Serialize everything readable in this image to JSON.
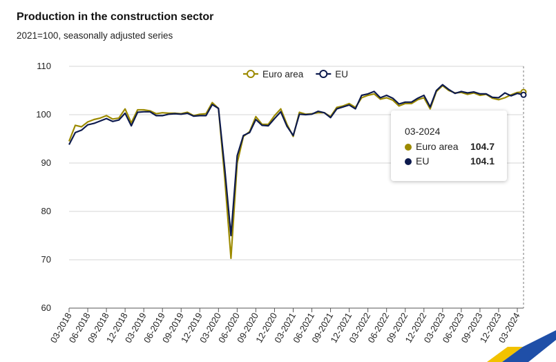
{
  "title": "Production in the construction sector",
  "subtitle": "2021=100, seasonally adjusted series",
  "chart_data": {
    "type": "line",
    "title": "Production in the construction sector",
    "subtitle": "2021=100, seasonally adjusted series",
    "xlabel": "",
    "ylabel": "",
    "ylim": [
      60,
      110
    ],
    "yticks": [
      60,
      70,
      80,
      90,
      100,
      110
    ],
    "xtick_labels": [
      "03-2018",
      "06-2018",
      "09-2018",
      "12-2018",
      "03-2019",
      "06-2019",
      "09-2019",
      "12-2019",
      "03-2020",
      "06-2020",
      "09-2020",
      "12-2020",
      "03-2021",
      "06-2021",
      "09-2021",
      "12-2021",
      "03-2022",
      "06-2022",
      "09-2022",
      "12-2022",
      "03-2023",
      "06-2023",
      "09-2023",
      "12-2023",
      "03-2024"
    ],
    "grid": "horizontal",
    "legend_position": "top",
    "x_start": "03-2018",
    "x_end": "03-2024",
    "series": [
      {
        "name": "Euro area",
        "color": "#9c8a00",
        "values": [
          94.5,
          97.8,
          97.5,
          98.5,
          99.0,
          99.3,
          99.8,
          99.1,
          99.3,
          101.2,
          98.3,
          101.0,
          101.0,
          100.8,
          100.2,
          100.4,
          100.3,
          100.3,
          100.2,
          100.5,
          99.8,
          100.1,
          100.2,
          102.5,
          101.3,
          87.0,
          70.3,
          90.0,
          95.5,
          96.5,
          99.6,
          98.0,
          98.0,
          99.8,
          101.2,
          98.0,
          95.5,
          100.5,
          100.1,
          100.2,
          100.4,
          100.4,
          99.6,
          101.5,
          101.8,
          102.3,
          101.5,
          103.5,
          104.0,
          104.3,
          103.2,
          103.5,
          103.0,
          101.8,
          102.3,
          102.3,
          103.1,
          103.5,
          101.2,
          104.8,
          106.0,
          105.0,
          104.5,
          104.6,
          104.2,
          104.5,
          104.0,
          104.2,
          103.4,
          103.1,
          103.5,
          104.1,
          104.6,
          104.7
        ]
      },
      {
        "name": "EU",
        "color": "#0d1a4d",
        "values": [
          93.8,
          96.3,
          96.8,
          97.9,
          98.2,
          98.7,
          99.2,
          98.6,
          98.9,
          100.3,
          97.7,
          100.5,
          100.6,
          100.6,
          99.8,
          99.8,
          100.1,
          100.2,
          100.1,
          100.3,
          99.7,
          99.8,
          99.8,
          102.1,
          101.3,
          89.0,
          75.0,
          91.5,
          95.7,
          96.3,
          99.0,
          97.8,
          97.7,
          99.2,
          100.6,
          97.6,
          95.7,
          100.1,
          100.0,
          100.1,
          100.7,
          100.4,
          99.4,
          101.2,
          101.6,
          102.0,
          101.2,
          104.0,
          104.3,
          104.8,
          103.5,
          104.0,
          103.4,
          102.2,
          102.6,
          102.6,
          103.4,
          104.0,
          101.6,
          105.0,
          106.2,
          105.2,
          104.4,
          104.8,
          104.5,
          104.7,
          104.3,
          104.3,
          103.6,
          103.5,
          104.5,
          103.9,
          104.4,
          104.1
        ]
      }
    ],
    "tooltip": {
      "date": "03-2024",
      "rows": [
        {
          "name": "Euro area",
          "value": "104.7",
          "color": "#9c8a00"
        },
        {
          "name": "EU",
          "value": "104.1",
          "color": "#0d1a4d"
        }
      ]
    }
  }
}
